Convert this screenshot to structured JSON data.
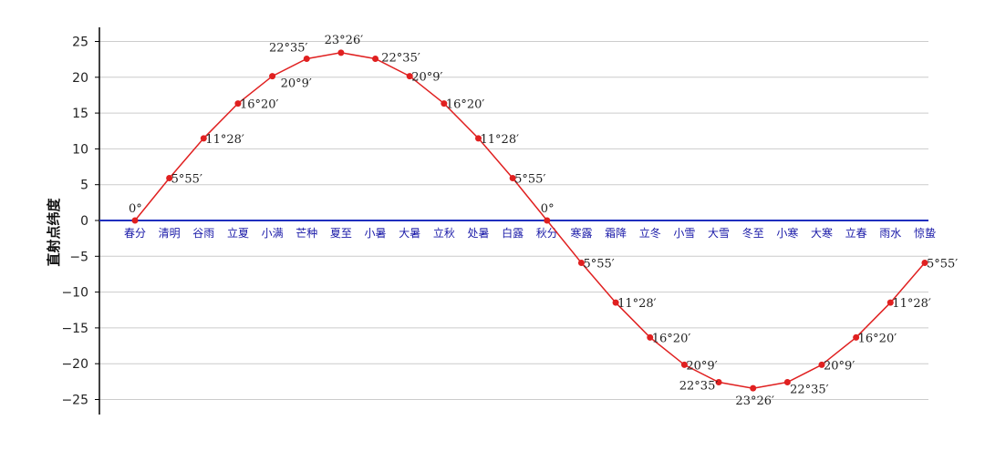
{
  "chart_data": {
    "type": "line",
    "title": "",
    "xlabel": "",
    "ylabel": "直射点纬度",
    "ylim": [
      -25,
      25
    ],
    "yticks": [
      25,
      20,
      15,
      10,
      5,
      0,
      -5,
      -10,
      -15,
      -20,
      -25
    ],
    "ytick_labels": [
      "25",
      "20",
      "15",
      "10",
      "5",
      "0",
      "−5",
      "−10",
      "−15",
      "−20",
      "−25"
    ],
    "grid": true,
    "legend": false,
    "categories": [
      "春分",
      "清明",
      "谷雨",
      "立夏",
      "小满",
      "芒种",
      "夏至",
      "小暑",
      "大暑",
      "立秋",
      "处暑",
      "白露",
      "秋分",
      "寒露",
      "霜降",
      "立冬",
      "小雪",
      "大雪",
      "冬至",
      "小寒",
      "大寒",
      "立春",
      "雨水",
      "惊蛰"
    ],
    "series": [
      {
        "values": [
          0,
          5.92,
          11.47,
          16.33,
          20.15,
          22.58,
          23.43,
          22.58,
          20.15,
          16.33,
          11.47,
          5.92,
          0,
          -5.92,
          -11.47,
          -16.33,
          -20.15,
          -22.58,
          -23.43,
          -22.58,
          -20.15,
          -16.33,
          -11.47,
          -5.92
        ],
        "labels": [
          "0°",
          "5°55′",
          "11°28′",
          "16°20′",
          "20°9′",
          "22°35′",
          "23°26′",
          "22°35′",
          "20°9′",
          "16°20′",
          "11°28′",
          "5°55′",
          "0°",
          "5°55′",
          "11°28′",
          "16°20′",
          "20°9′",
          "22°35′",
          "23°26′",
          "22°35′",
          "20°9′",
          "16°20′",
          "11°28′",
          "5°55′"
        ],
        "color": "#e02020"
      }
    ],
    "colors": {
      "line": "#e02020",
      "zero_axis": "#1f2fbf",
      "category_text": "#1a1aa8",
      "grid": "#cccccc",
      "axis": "#000000"
    }
  }
}
